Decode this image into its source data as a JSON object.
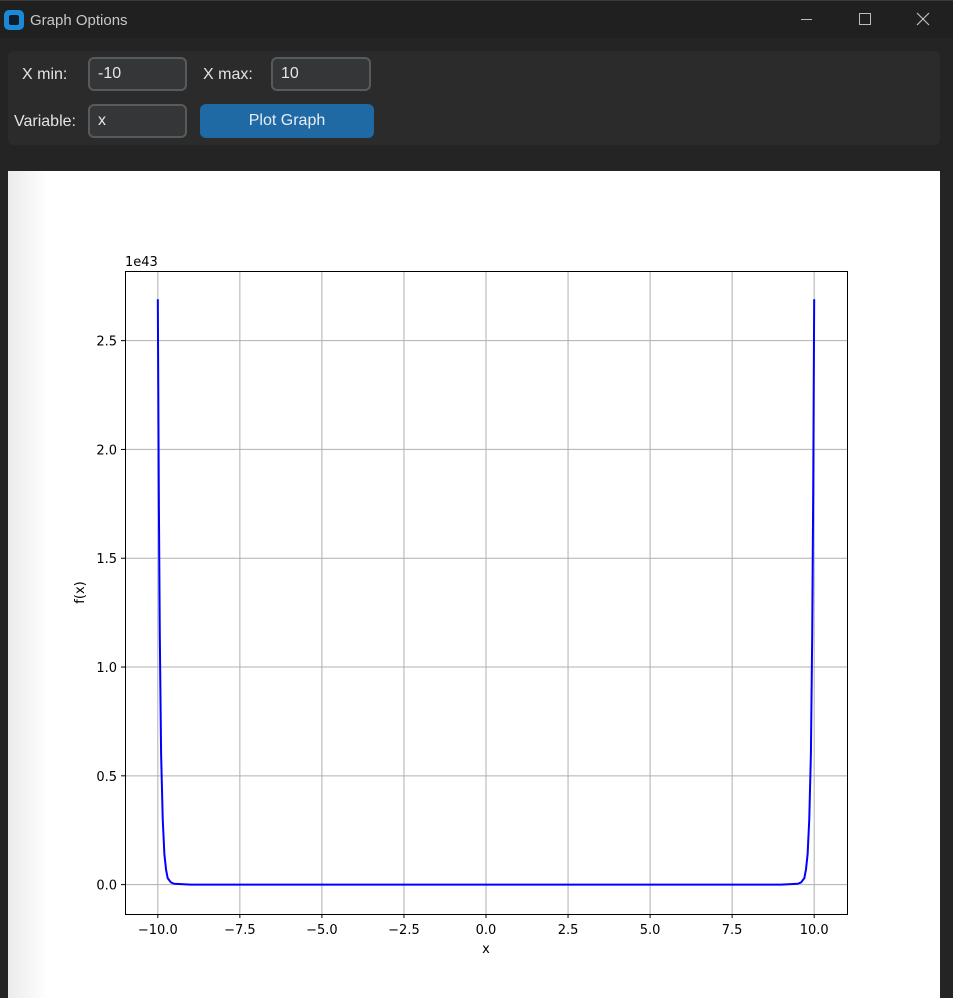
{
  "window": {
    "title": "Graph Options",
    "icon": "app-icon",
    "controls": [
      "minimize-icon",
      "maximize-icon",
      "close-icon"
    ]
  },
  "form": {
    "xmin_label": "X min:",
    "xmin_value": "-10",
    "xmax_label": "X max:",
    "xmax_value": "10",
    "variable_label": "Variable:",
    "variable_value": "x",
    "plot_button": "Plot Graph"
  },
  "colors": {
    "accent": "#1f6aa5",
    "line": "#0000ff",
    "grid": "#b0b0b0",
    "background": "#242424"
  },
  "chart_data": {
    "type": "line",
    "title": "",
    "xlabel": "x",
    "ylabel": "f(x)",
    "offset_text": "1e43",
    "xlim": [
      -11,
      11
    ],
    "ylim": [
      -0.135,
      2.82
    ],
    "xticks": [
      -10,
      -7.5,
      -5,
      -2.5,
      0,
      2.5,
      5,
      7.5,
      10
    ],
    "xtick_labels": [
      "−10.0",
      "−7.5",
      "−5.0",
      "−2.5",
      "0.0",
      "2.5",
      "5.0",
      "7.5",
      "10.0"
    ],
    "yticks": [
      0,
      0.5,
      1.0,
      1.5,
      2.0,
      2.5
    ],
    "ytick_labels": [
      "0.0",
      "0.5",
      "1.0",
      "1.5",
      "2.0",
      "2.5"
    ],
    "grid": true,
    "series": [
      {
        "color": "#0000ff",
        "x": [
          -10,
          -9.97,
          -9.94,
          -9.9,
          -9.85,
          -9.8,
          -9.75,
          -9.7,
          -9.6,
          -9.5,
          -9.0,
          -5,
          0,
          5,
          9.0,
          9.5,
          9.6,
          9.7,
          9.75,
          9.8,
          9.85,
          9.9,
          9.94,
          9.97,
          10
        ],
        "y": [
          2.69,
          1.8,
          1.15,
          0.6,
          0.3,
          0.14,
          0.07,
          0.03,
          0.01,
          0.004,
          0.0,
          0.0,
          0.0,
          0.0,
          0.0,
          0.004,
          0.01,
          0.03,
          0.07,
          0.14,
          0.3,
          0.6,
          1.15,
          1.8,
          2.69
        ]
      }
    ]
  }
}
